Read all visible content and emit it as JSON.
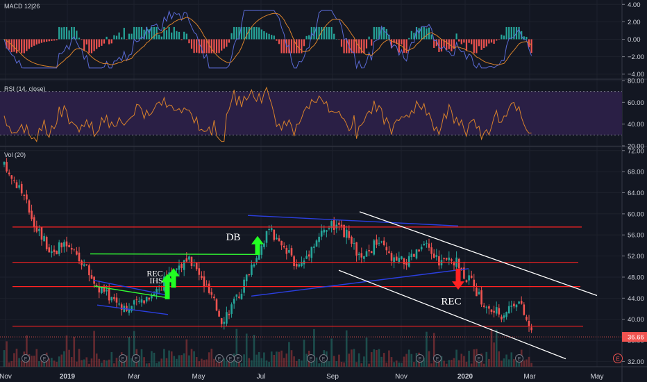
{
  "panes": {
    "macd": {
      "label": "MACD 12|26"
    },
    "rsi": {
      "label": "RSI (14, close)"
    },
    "vol": {
      "label": "Vol (20)"
    }
  },
  "colors": {
    "background": "#131722",
    "grid": "#1e222d",
    "bull": "#26a69a",
    "bear": "#ef5350",
    "macd_pos": "#26a69a",
    "macd_neg": "#ef5350",
    "macd_line": "#5b6bd6",
    "signal_line": "#d9822b",
    "rsi_line": "#d9822b",
    "rsi_band": "#2a1f45",
    "resistance": "#ff2222",
    "blue_trend": "#2b3fe0",
    "green_trend": "#33ff33",
    "channel": "#ffffff",
    "arrow_up": "#22ff22",
    "arrow_down": "#ff2222",
    "price_badge": "#ef5350"
  },
  "chart_data": [
    {
      "type": "bar",
      "title": "MACD 12|26",
      "ylim": [
        -4.5,
        4.5
      ],
      "y_ticks": [
        "4.00",
        "2.00",
        "0.00",
        "−2.00",
        "−4.00"
      ],
      "y_tick_values": [
        4,
        2,
        0,
        -2,
        -4
      ],
      "histogram_peak": 1.4,
      "histogram_trough": -1.6,
      "macd_line_max": 3.3,
      "macd_line_min": -3.3,
      "series": [
        {
          "name": "MACD",
          "color": "macd_line"
        },
        {
          "name": "Signal",
          "color": "signal_line"
        }
      ]
    },
    {
      "type": "line",
      "title": "RSI (14, close)",
      "ylim": [
        20,
        80
      ],
      "y_ticks": [
        "80.00",
        "60.00",
        "40.00",
        "20.00"
      ],
      "y_tick_values": [
        80,
        60,
        40,
        20
      ],
      "band": [
        30,
        70
      ],
      "rsi_max": 76,
      "rsi_min": 24
    },
    {
      "type": "line",
      "subtype": "candlestick",
      "title": "Vol (20)",
      "ylim": [
        31,
        72.5
      ],
      "y_ticks": [
        "72.00",
        "68.00",
        "64.00",
        "60.00",
        "56.00",
        "52.00",
        "48.00",
        "44.00",
        "40.00",
        "36.00",
        "32.00"
      ],
      "y_tick_values": [
        72,
        68,
        64,
        60,
        56,
        52,
        48,
        44,
        40,
        36,
        32
      ],
      "x_ticks": [
        "Nov",
        "2019",
        "Mar",
        "May",
        "Jul",
        "Sep",
        "Nov",
        "2020",
        "Mar",
        "May"
      ],
      "last_price": "36.66",
      "last_price_value": 36.66,
      "price_path": [
        {
          "x": "Nov 2018",
          "y": 69
        },
        {
          "x": "mid Nov 2018",
          "y": 65
        },
        {
          "x": "Dec 2018",
          "y": 58
        },
        {
          "x": "late Dec 2018",
          "y": 53
        },
        {
          "x": "2019",
          "y": 54
        },
        {
          "x": "late Jan 2019",
          "y": 51
        },
        {
          "x": "Feb 2019",
          "y": 46
        },
        {
          "x": "late Feb 2019",
          "y": 44
        },
        {
          "x": "Mar 2019",
          "y": 42
        },
        {
          "x": "late Mar 2019",
          "y": 44
        },
        {
          "x": "Apr 2019",
          "y": 46
        },
        {
          "x": "late Apr 2019",
          "y": 50
        },
        {
          "x": "May 2019",
          "y": 51
        },
        {
          "x": "late May 2019",
          "y": 46
        },
        {
          "x": "Jun 2019",
          "y": 40
        },
        {
          "x": "mid Jun 2019",
          "y": 44
        },
        {
          "x": "Jul 2019",
          "y": 51
        },
        {
          "x": "mid Jul 2019",
          "y": 57
        },
        {
          "x": "Aug 2019",
          "y": 53
        },
        {
          "x": "mid Aug 2019",
          "y": 50
        },
        {
          "x": "late Aug 2019",
          "y": 55
        },
        {
          "x": "Sep 2019",
          "y": 58
        },
        {
          "x": "mid Sep 2019",
          "y": 56
        },
        {
          "x": "Oct 2019",
          "y": 51
        },
        {
          "x": "mid Oct 2019",
          "y": 55
        },
        {
          "x": "Nov 2019",
          "y": 51
        },
        {
          "x": "mid Nov 2019",
          "y": 51
        },
        {
          "x": "Dec 2019",
          "y": 54
        },
        {
          "x": "mid Dec 2019",
          "y": 51
        },
        {
          "x": "2020",
          "y": 51
        },
        {
          "x": "mid Jan 2020",
          "y": 47
        },
        {
          "x": "Feb 2020",
          "y": 42
        },
        {
          "x": "mid Feb 2020",
          "y": 41
        },
        {
          "x": "late Feb 2020",
          "y": 44
        },
        {
          "x": "Mar 2020",
          "y": 36.66
        }
      ],
      "volume_ylim": [
        0,
        100
      ],
      "annotations": [
        {
          "name": "db-label",
          "text": "DB"
        },
        {
          "name": "rec-label-left",
          "text": "REC"
        },
        {
          "name": "ihs-label",
          "text": "IHS"
        },
        {
          "name": "rec-label-right",
          "text": "REC"
        }
      ],
      "horizontal_levels": [
        57.5,
        50.8,
        46.2,
        38.7
      ],
      "event_markers": [
        "E",
        "E",
        "E",
        "E",
        "E",
        "E",
        "E",
        "E",
        "E",
        "E",
        "E",
        "E",
        "E"
      ]
    }
  ]
}
